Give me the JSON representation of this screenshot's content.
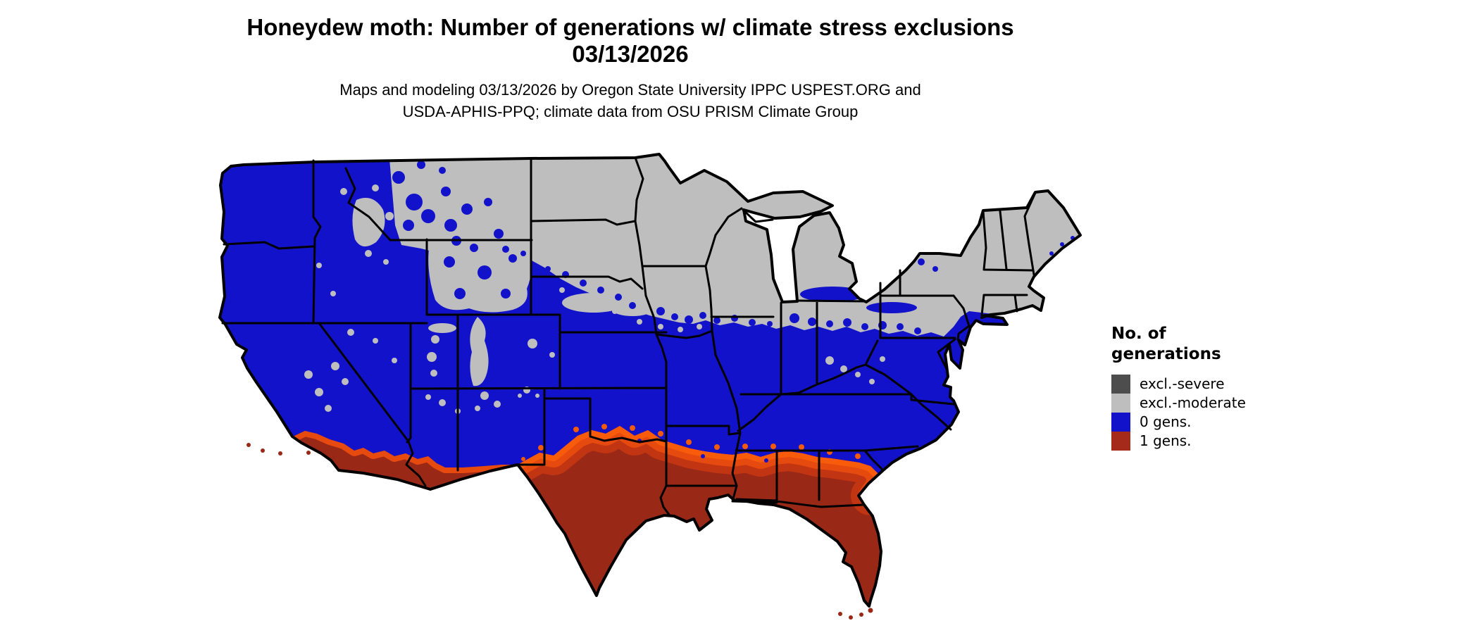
{
  "title": {
    "line1": "Honeydew moth: Number of generations w/ climate stress exclusions",
    "line2": "03/13/2026"
  },
  "subtitle": {
    "line1": "Maps and modeling 03/13/2026 by Oregon State University IPPC USPEST.ORG and",
    "line2": "USDA-APHIS-PPQ; climate data from OSU PRISM Climate Group"
  },
  "legend": {
    "title_line1": "No. of",
    "title_line2": "generations",
    "items": [
      {
        "label": "excl.-severe",
        "color": "#4D4D4D",
        "key": "excl_severe"
      },
      {
        "label": "excl.-moderate",
        "color": "#BEBEBE",
        "key": "excl_moderate"
      },
      {
        "label": "0 gens.",
        "color": "#1212CB",
        "key": "gens_0"
      },
      {
        "label": "1 gens.",
        "color": "#A52A1A",
        "key": "gens_1"
      }
    ]
  },
  "map": {
    "region": "Contiguous United States",
    "kind": "raster choropleth of insect generations with climate stress exclusions",
    "colors": {
      "excl_severe": "#4D4D4D",
      "excl_moderate": "#BEBEBE",
      "gens_0": "#1212CB",
      "gens_1": "#A52A1A",
      "gens_1_deep": "#992817",
      "transition_orange": "#F25A0E",
      "border": "#000000",
      "water": "#FFFFFF"
    },
    "pattern_summary": {
      "excl_moderate_zone": "northern tier: northern plains, upper Midwest, Great Lakes, New England, high Rockies",
      "gens_0_zone": "west coast, interior west, central and mid-Atlantic states",
      "gens_1_zone": "southern Texas, Gulf coast, Florida, southern Arizona, southern California coast"
    }
  }
}
